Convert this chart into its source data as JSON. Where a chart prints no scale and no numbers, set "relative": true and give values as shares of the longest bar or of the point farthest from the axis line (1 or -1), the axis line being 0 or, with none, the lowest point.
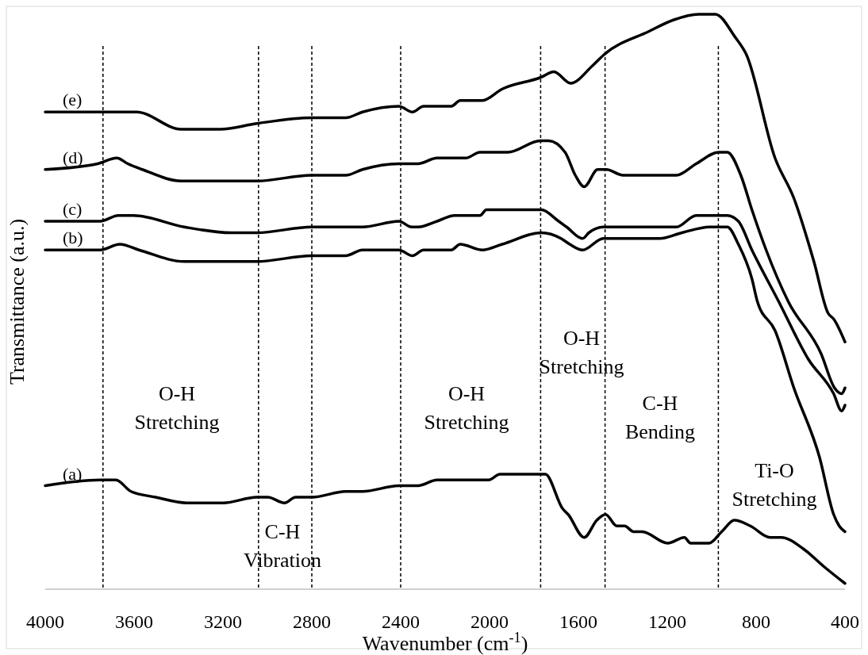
{
  "chart_data": {
    "type": "line",
    "relative": true,
    "xlabel": "Wavenumber (cm$^{-1}$)",
    "ylabel": "Transmittance (a.u.)",
    "xlim": [
      4000,
      400
    ],
    "xticks": [
      4000,
      3600,
      3200,
      2800,
      2400,
      2000,
      1600,
      1200,
      800,
      400
    ],
    "tick_labels": "x",
    "grid": false,
    "marker": "none",
    "line_style": "solid",
    "series": [
      {
        "name": "(e)",
        "color": "#000000",
        "x": [
          4000,
          3739,
          3657,
          3589,
          3388,
          3213,
          3048,
          2801,
          2648,
          2572,
          2408,
          2347,
          2297,
          2272,
          2172,
          2132,
          2032,
          1943,
          1771,
          1710,
          1635,
          1538,
          1484,
          1284,
          1173,
          1059,
          984,
          894,
          844,
          715,
          630,
          540,
          476,
          451,
          400
        ],
        "values": [
          0.83,
          0.83,
          0.83,
          0.83,
          0.8,
          0.8,
          0.81,
          0.82,
          0.82,
          0.83,
          0.84,
          0.83,
          0.84,
          0.84,
          0.84,
          0.85,
          0.85,
          0.87,
          0.89,
          0.9,
          0.88,
          0.91,
          0.93,
          0.97,
          0.99,
          1.0,
          1.0,
          0.96,
          0.93,
          0.75,
          0.68,
          0.57,
          0.48,
          0.47,
          0.43
        ]
      },
      {
        "name": "(d)",
        "color": "#000000",
        "x": [
          4000,
          3764,
          3678,
          3628,
          3563,
          3388,
          3199,
          3048,
          2801,
          2648,
          2572,
          2408,
          2322,
          2236,
          2147,
          2107,
          2043,
          2007,
          1918,
          1771,
          1735,
          1660,
          1614,
          1574,
          1513,
          1474,
          1399,
          1331,
          1223,
          1159,
          1070,
          969,
          930,
          869,
          819,
          755,
          655,
          508,
          447,
          415,
          400
        ],
        "values": [
          0.73,
          0.74,
          0.75,
          0.74,
          0.73,
          0.71,
          0.71,
          0.71,
          0.72,
          0.72,
          0.73,
          0.74,
          0.74,
          0.75,
          0.75,
          0.75,
          0.76,
          0.76,
          0.76,
          0.78,
          0.78,
          0.76,
          0.72,
          0.7,
          0.73,
          0.73,
          0.72,
          0.72,
          0.72,
          0.72,
          0.74,
          0.76,
          0.76,
          0.72,
          0.66,
          0.59,
          0.5,
          0.41,
          0.35,
          0.34,
          0.35
        ]
      },
      {
        "name": "(c)",
        "color": "#000000",
        "x": [
          4000,
          3753,
          3671,
          3603,
          3374,
          3163,
          3048,
          2801,
          2648,
          2572,
          2408,
          2351,
          2322,
          2236,
          2157,
          2107,
          2043,
          2014,
          1957,
          1893,
          1803,
          1767,
          1689,
          1653,
          1581,
          1553,
          1488,
          1413,
          1309,
          1223,
          1159,
          1070,
          969,
          930,
          880,
          819,
          698,
          565,
          451,
          415,
          400
        ],
        "values": [
          0.64,
          0.64,
          0.65,
          0.65,
          0.63,
          0.62,
          0.62,
          0.63,
          0.63,
          0.63,
          0.64,
          0.63,
          0.63,
          0.64,
          0.65,
          0.65,
          0.65,
          0.66,
          0.66,
          0.66,
          0.66,
          0.66,
          0.64,
          0.63,
          0.61,
          0.62,
          0.63,
          0.63,
          0.63,
          0.63,
          0.63,
          0.65,
          0.65,
          0.65,
          0.64,
          0.59,
          0.5,
          0.4,
          0.34,
          0.31,
          0.32
        ]
      },
      {
        "name": "(b)",
        "color": "#000000",
        "x": [
          4000,
          3753,
          3664,
          3578,
          3374,
          3199,
          3048,
          2801,
          2648,
          2572,
          2408,
          2347,
          2297,
          2236,
          2172,
          2132,
          2032,
          1943,
          1767,
          1678,
          1639,
          1581,
          1488,
          1388,
          1234,
          1134,
          1009,
          930,
          880,
          819,
          794,
          715,
          630,
          515,
          451,
          426,
          400
        ],
        "values": [
          0.59,
          0.59,
          0.6,
          0.59,
          0.57,
          0.57,
          0.57,
          0.58,
          0.58,
          0.59,
          0.59,
          0.58,
          0.59,
          0.59,
          0.59,
          0.6,
          0.59,
          0.6,
          0.62,
          0.61,
          0.6,
          0.59,
          0.61,
          0.61,
          0.61,
          0.62,
          0.63,
          0.63,
          0.6,
          0.54,
          0.5,
          0.45,
          0.35,
          0.23,
          0.13,
          0.11,
          0.1
        ]
      },
      {
        "name": "(a)",
        "color": "#000000",
        "x": [
          4000,
          3753,
          3682,
          3614,
          3503,
          3363,
          3199,
          3048,
          2998,
          2923,
          2873,
          2798,
          2648,
          2572,
          2408,
          2351,
          2322,
          2236,
          2143,
          2107,
          2036,
          2004,
          1953,
          1889,
          1800,
          1749,
          1671,
          1646,
          1574,
          1517,
          1478,
          1427,
          1392,
          1352,
          1313,
          1198,
          1123,
          1095,
          1012,
          955,
          898,
          826,
          737,
          687,
          587,
          497,
          433,
          400
        ],
        "values": [
          0.18,
          0.19,
          0.19,
          0.17,
          0.16,
          0.15,
          0.15,
          0.16,
          0.16,
          0.15,
          0.16,
          0.16,
          0.17,
          0.17,
          0.18,
          0.18,
          0.18,
          0.19,
          0.19,
          0.19,
          0.19,
          0.19,
          0.2,
          0.2,
          0.2,
          0.2,
          0.14,
          0.13,
          0.09,
          0.12,
          0.13,
          0.11,
          0.11,
          0.1,
          0.1,
          0.08,
          0.09,
          0.08,
          0.08,
          0.1,
          0.12,
          0.11,
          0.09,
          0.09,
          0.07,
          0.04,
          0.02,
          0.01
        ]
      }
    ],
    "ref_lines": [
      {
        "axis": "x",
        "value": 3740,
        "line_style": "dashed",
        "color": "#000000"
      },
      {
        "axis": "x",
        "value": 3040,
        "line_style": "dashed",
        "color": "#000000"
      },
      {
        "axis": "x",
        "value": 2800,
        "line_style": "dashed",
        "color": "#000000"
      },
      {
        "axis": "x",
        "value": 2400,
        "line_style": "dashed",
        "color": "#000000"
      },
      {
        "axis": "x",
        "value": 1770,
        "line_style": "dashed",
        "color": "#000000"
      },
      {
        "axis": "x",
        "value": 1480,
        "line_style": "dashed",
        "color": "#000000"
      },
      {
        "axis": "x",
        "value": 970,
        "line_style": "dashed",
        "color": "#000000"
      }
    ],
    "annotations": [
      "O-H Stretching",
      "C-H Vibration",
      "O-H Stretching",
      "O-H Stretching",
      "C-H Bending",
      "Ti-O Stretching"
    ]
  }
}
